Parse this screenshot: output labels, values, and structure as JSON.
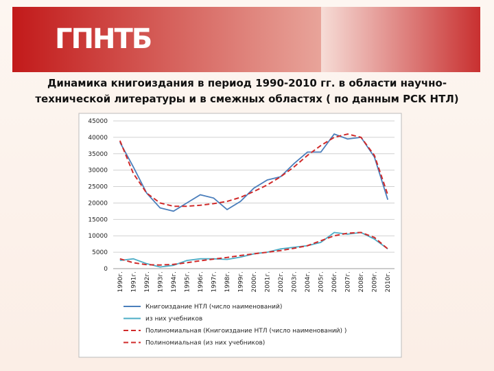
{
  "logo": "ГПНТБ",
  "chart_data": {
    "type": "line",
    "title": "Динамика книгоиздания в период 1990-2010 гг. в области научно-технической литературы и в смежных областях ( по данным РСК НТЛ)",
    "categories": [
      "1990г.",
      "1991г.",
      "1992г.",
      "1993г.",
      "1994г.",
      "1995г.",
      "1996г.",
      "1997г.",
      "1998г.",
      "1999г.",
      "2000г.",
      "2001г.",
      "2002г.",
      "2003г.",
      "2004г.",
      "2005г.",
      "2006г.",
      "2007г.",
      "2008г.",
      "2009г.",
      "2010г."
    ],
    "ylim": [
      0,
      45000
    ],
    "yticks": [
      0,
      5000,
      10000,
      15000,
      20000,
      25000,
      30000,
      35000,
      40000,
      45000
    ],
    "grid": true,
    "legend": "bottom",
    "series": [
      {
        "name": "Книгоиздание НТЛ (число наименований)",
        "color": "#4a7ebb",
        "style": "solid",
        "values": [
          38500,
          31000,
          23000,
          18500,
          17500,
          20000,
          22500,
          21500,
          18000,
          20500,
          24500,
          27000,
          28000,
          32000,
          35500,
          35500,
          41000,
          39500,
          40000,
          34000,
          21000
        ]
      },
      {
        "name": "из них учебников",
        "color": "#4bacc6",
        "style": "solid",
        "values": [
          2500,
          3000,
          1500,
          500,
          1000,
          2500,
          3000,
          3000,
          2800,
          3500,
          4500,
          5000,
          6000,
          6500,
          7000,
          8000,
          11000,
          10500,
          11000,
          9000,
          6000
        ]
      },
      {
        "name": "Полиномиальная (Книгоиздание НТЛ (число наименований) )",
        "color": "#d02a2a",
        "style": "dashed",
        "values": [
          39000,
          29000,
          23000,
          20000,
          19000,
          19000,
          19300,
          19800,
          20500,
          21700,
          23500,
          25500,
          28000,
          31000,
          34500,
          37500,
          40000,
          41000,
          40000,
          34500,
          22500
        ]
      },
      {
        "name": "Полиномиальная (из них учебников)",
        "color": "#d02a2a",
        "style": "dashed",
        "values": [
          3000,
          1800,
          1200,
          1100,
          1300,
          1800,
          2400,
          2900,
          3400,
          4000,
          4500,
          5000,
          5500,
          6200,
          7000,
          8500,
          10000,
          10800,
          11000,
          9500,
          6000
        ]
      }
    ]
  }
}
